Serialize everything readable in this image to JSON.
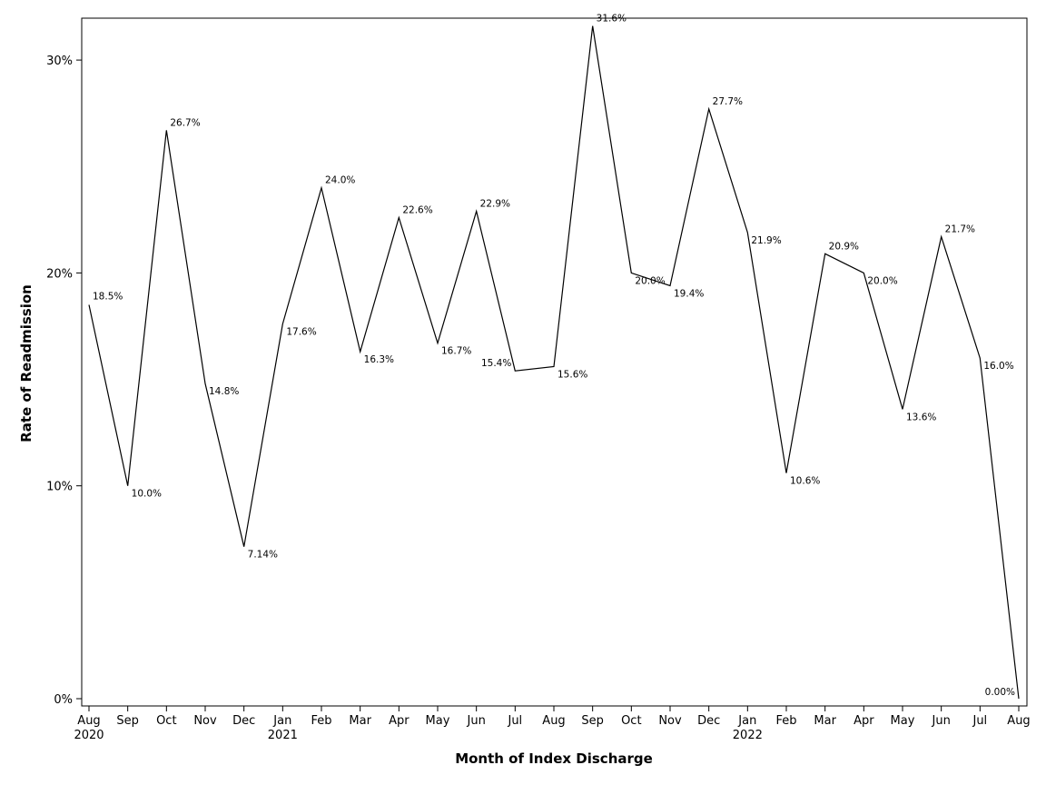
{
  "chart_data": {
    "type": "line",
    "title": "",
    "xlabel": "Month of Index Discharge",
    "ylabel": "Rate of Readmission",
    "ylim": [
      0,
      32
    ],
    "y_ticks": [
      {
        "value": 0,
        "label": "0%"
      },
      {
        "value": 10,
        "label": "10%"
      },
      {
        "value": 20,
        "label": "20%"
      },
      {
        "value": 30,
        "label": "30%"
      }
    ],
    "grid": false,
    "legend": "none",
    "series": [
      {
        "color": "#000000",
        "points": [
          {
            "month": "Aug",
            "year": "2020",
            "value": 18.5,
            "label": "18.5%"
          },
          {
            "month": "Sep",
            "year": "",
            "value": 10.0,
            "label": "10.0%"
          },
          {
            "month": "Oct",
            "year": "",
            "value": 26.7,
            "label": "26.7%"
          },
          {
            "month": "Nov",
            "year": "",
            "value": 14.8,
            "label": "14.8%"
          },
          {
            "month": "Dec",
            "year": "",
            "value": 7.14,
            "label": "7.14%"
          },
          {
            "month": "Jan",
            "year": "2021",
            "value": 17.6,
            "label": "17.6%"
          },
          {
            "month": "Feb",
            "year": "",
            "value": 24.0,
            "label": "24.0%"
          },
          {
            "month": "Mar",
            "year": "",
            "value": 16.3,
            "label": "16.3%"
          },
          {
            "month": "Apr",
            "year": "",
            "value": 22.6,
            "label": "22.6%"
          },
          {
            "month": "May",
            "year": "",
            "value": 16.7,
            "label": "16.7%"
          },
          {
            "month": "Jun",
            "year": "",
            "value": 22.9,
            "label": "22.9%"
          },
          {
            "month": "Jul",
            "year": "",
            "value": 15.4,
            "label": "15.4%"
          },
          {
            "month": "Aug",
            "year": "",
            "value": 15.6,
            "label": "15.6%"
          },
          {
            "month": "Sep",
            "year": "",
            "value": 31.6,
            "label": "31.6%"
          },
          {
            "month": "Oct",
            "year": "",
            "value": 20.0,
            "label": "20.0%"
          },
          {
            "month": "Nov",
            "year": "",
            "value": 19.4,
            "label": "19.4%"
          },
          {
            "month": "Dec",
            "year": "",
            "value": 27.7,
            "label": "27.7%"
          },
          {
            "month": "Jan",
            "year": "2022",
            "value": 21.9,
            "label": "21.9%"
          },
          {
            "month": "Feb",
            "year": "",
            "value": 10.6,
            "label": "10.6%"
          },
          {
            "month": "Mar",
            "year": "",
            "value": 20.9,
            "label": "20.9%"
          },
          {
            "month": "Apr",
            "year": "",
            "value": 20.0,
            "label": "20.0%"
          },
          {
            "month": "May",
            "year": "",
            "value": 13.6,
            "label": "13.6%"
          },
          {
            "month": "Jun",
            "year": "",
            "value": 21.7,
            "label": "21.7%"
          },
          {
            "month": "Jul",
            "year": "",
            "value": 16.0,
            "label": "16.0%"
          },
          {
            "month": "Aug",
            "year": "",
            "value": 0.0,
            "label": "0.00%"
          }
        ]
      }
    ]
  }
}
